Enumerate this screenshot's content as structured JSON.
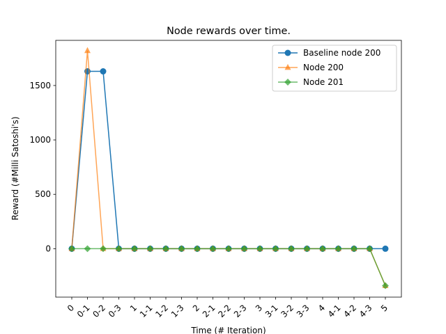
{
  "chart_data": {
    "type": "line",
    "title": "Node rewards over time.",
    "xlabel": "Time (# Iteration)",
    "ylabel": "Reward (#Milli Satoshi's)",
    "categories": [
      "0",
      "0-1",
      "0-2",
      "0-3",
      "1",
      "1-1",
      "1-2",
      "1-3",
      "2",
      "2-1",
      "2-2",
      "2-3",
      "3",
      "3-1",
      "3-2",
      "3-3",
      "4",
      "4-1",
      "4-2",
      "4-3",
      "5"
    ],
    "ylim": [
      -445,
      1915
    ],
    "yticks": [
      0,
      500,
      1000,
      1500
    ],
    "grid": false,
    "legend_position": "top-right",
    "series": [
      {
        "name": "Baseline node 200",
        "color": "#1f77b4",
        "marker": "circle",
        "alpha": 1.0,
        "values": [
          0,
          1630,
          1630,
          0,
          0,
          0,
          0,
          0,
          0,
          0,
          0,
          0,
          0,
          0,
          0,
          0,
          0,
          0,
          0,
          0,
          0
        ]
      },
      {
        "name": "Node 200",
        "color": "#ff7f0e",
        "marker": "triangle",
        "alpha": 0.7,
        "values": [
          0,
          1820,
          0,
          0,
          0,
          0,
          0,
          0,
          0,
          0,
          0,
          0,
          0,
          0,
          0,
          0,
          0,
          0,
          0,
          0,
          -340
        ]
      },
      {
        "name": "Node 201",
        "color": "#2ca02c",
        "marker": "diamond",
        "alpha": 0.7,
        "values": [
          0,
          0,
          0,
          0,
          0,
          0,
          0,
          0,
          0,
          0,
          0,
          0,
          0,
          0,
          0,
          0,
          0,
          0,
          0,
          0,
          -340
        ]
      }
    ]
  }
}
